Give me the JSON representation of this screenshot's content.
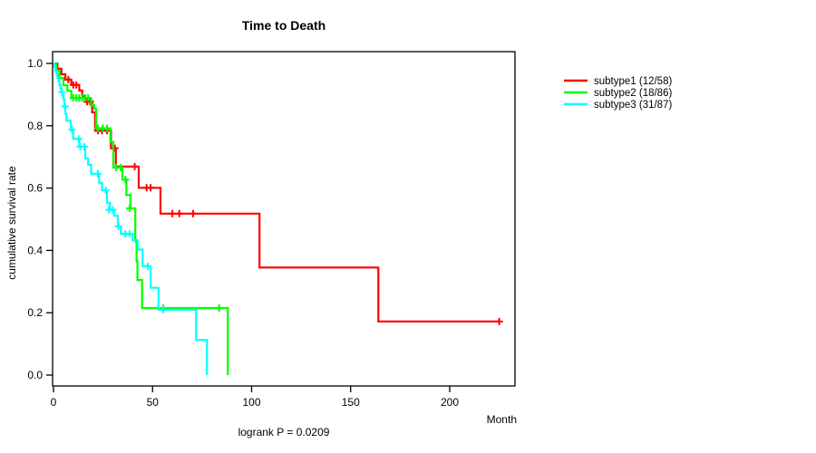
{
  "title": "Time to Death",
  "colors": {
    "axis": "#000000",
    "background": "#FFFFFF",
    "subtype1": "#FF0000",
    "subtype2": "#00FF00",
    "subtype3": "#00FFFF"
  },
  "chart_data": {
    "type": "line",
    "subtype": "kaplan-meier-step",
    "title": "Time to Death",
    "xlabel": "Month",
    "ylabel": "cumulative survival rate",
    "footnote": "logrank P = 0.0209",
    "xlim": [
      0,
      233
    ],
    "ylim": [
      0.0,
      1.0
    ],
    "grid": false,
    "legend_position": "right-outside-top",
    "xticks": [
      {
        "v": 0,
        "label": "0"
      },
      {
        "v": 50,
        "label": "50"
      },
      {
        "v": 100,
        "label": "100"
      },
      {
        "v": 150,
        "label": "150"
      },
      {
        "v": 200,
        "label": "200"
      }
    ],
    "yticks": [
      {
        "v": 0.0,
        "label": "0.0"
      },
      {
        "v": 0.2,
        "label": "0.2"
      },
      {
        "v": 0.4,
        "label": "0.4"
      },
      {
        "v": 0.6,
        "label": "0.6"
      },
      {
        "v": 0.8,
        "label": "0.8"
      },
      {
        "v": 1.0,
        "label": "1.0"
      }
    ],
    "series": [
      {
        "name": "subtype1 (12/58)",
        "color": "#FF0000",
        "steps": [
          [
            0,
            1.0
          ],
          [
            2,
            0.983
          ],
          [
            4,
            0.965
          ],
          [
            6,
            0.948
          ],
          [
            9,
            0.931
          ],
          [
            13,
            0.913
          ],
          [
            14.5,
            0.895
          ],
          [
            16,
            0.877
          ],
          [
            19.5,
            0.843
          ],
          [
            21,
            0.784
          ],
          [
            29,
            0.728
          ],
          [
            31.5,
            0.669
          ],
          [
            43,
            0.601
          ],
          [
            54,
            0.518
          ],
          [
            104,
            0.345
          ],
          [
            164,
            0.172
          ],
          [
            225,
            0.172
          ]
        ],
        "censors": [
          [
            7.5,
            0.948
          ],
          [
            10,
            0.931
          ],
          [
            11.5,
            0.931
          ],
          [
            17,
            0.877
          ],
          [
            18.5,
            0.877
          ],
          [
            22.5,
            0.784
          ],
          [
            24.5,
            0.784
          ],
          [
            27,
            0.784
          ],
          [
            31,
            0.728
          ],
          [
            41,
            0.669
          ],
          [
            47,
            0.601
          ],
          [
            49,
            0.601
          ],
          [
            60,
            0.518
          ],
          [
            63.5,
            0.518
          ],
          [
            70.5,
            0.518
          ],
          [
            225,
            0.172
          ]
        ]
      },
      {
        "name": "subtype2 (18/86)",
        "color": "#00FF00",
        "steps": [
          [
            0,
            1.0
          ],
          [
            1.5,
            0.977
          ],
          [
            3,
            0.953
          ],
          [
            5,
            0.93
          ],
          [
            7,
            0.912
          ],
          [
            9,
            0.889
          ],
          [
            19,
            0.866
          ],
          [
            20.5,
            0.855
          ],
          [
            21.5,
            0.792
          ],
          [
            28.7,
            0.748
          ],
          [
            30.2,
            0.666
          ],
          [
            34.8,
            0.627
          ],
          [
            36.8,
            0.578
          ],
          [
            38.8,
            0.535
          ],
          [
            41.3,
            0.43
          ],
          [
            41.9,
            0.365
          ],
          [
            42.4,
            0.305
          ],
          [
            44.7,
            0.215
          ],
          [
            88,
            0.0
          ]
        ],
        "censors": [
          [
            10,
            0.889
          ],
          [
            11.5,
            0.889
          ],
          [
            13,
            0.889
          ],
          [
            14.5,
            0.889
          ],
          [
            16,
            0.889
          ],
          [
            17.5,
            0.889
          ],
          [
            22.4,
            0.792
          ],
          [
            24.9,
            0.792
          ],
          [
            27,
            0.792
          ],
          [
            31.6,
            0.666
          ],
          [
            33.9,
            0.666
          ],
          [
            36.3,
            0.627
          ],
          [
            38.4,
            0.535
          ],
          [
            55.4,
            0.215
          ],
          [
            83.6,
            0.215
          ]
        ]
      },
      {
        "name": "subtype3 (31/87)",
        "color": "#00FFFF",
        "steps": [
          [
            0,
            1.0
          ],
          [
            0.5,
            0.989
          ],
          [
            1,
            0.977
          ],
          [
            1.5,
            0.966
          ],
          [
            2,
            0.954
          ],
          [
            2.5,
            0.943
          ],
          [
            3,
            0.931
          ],
          [
            3.5,
            0.92
          ],
          [
            4,
            0.908
          ],
          [
            4.5,
            0.897
          ],
          [
            5,
            0.885
          ],
          [
            5.5,
            0.862
          ],
          [
            6,
            0.839
          ],
          [
            6.5,
            0.816
          ],
          [
            8.8,
            0.787
          ],
          [
            10,
            0.758
          ],
          [
            13,
            0.733
          ],
          [
            16,
            0.695
          ],
          [
            17.5,
            0.675
          ],
          [
            19,
            0.646
          ],
          [
            23,
            0.617
          ],
          [
            24.5,
            0.593
          ],
          [
            27,
            0.553
          ],
          [
            28.5,
            0.53
          ],
          [
            30.5,
            0.511
          ],
          [
            32.5,
            0.477
          ],
          [
            34,
            0.453
          ],
          [
            40,
            0.433
          ],
          [
            42.5,
            0.403
          ],
          [
            45,
            0.349
          ],
          [
            49,
            0.28
          ],
          [
            53,
            0.21
          ],
          [
            72,
            0.113
          ],
          [
            77.5,
            0.0
          ]
        ],
        "censors": [
          [
            4.3,
            0.908
          ],
          [
            5.8,
            0.862
          ],
          [
            9.3,
            0.787
          ],
          [
            12.7,
            0.758
          ],
          [
            13.5,
            0.733
          ],
          [
            15.6,
            0.733
          ],
          [
            22.4,
            0.646
          ],
          [
            26.4,
            0.593
          ],
          [
            28,
            0.53
          ],
          [
            30,
            0.53
          ],
          [
            32.8,
            0.477
          ],
          [
            36.3,
            0.453
          ],
          [
            38.4,
            0.453
          ],
          [
            47.6,
            0.349
          ],
          [
            55.4,
            0.21
          ]
        ]
      }
    ]
  }
}
